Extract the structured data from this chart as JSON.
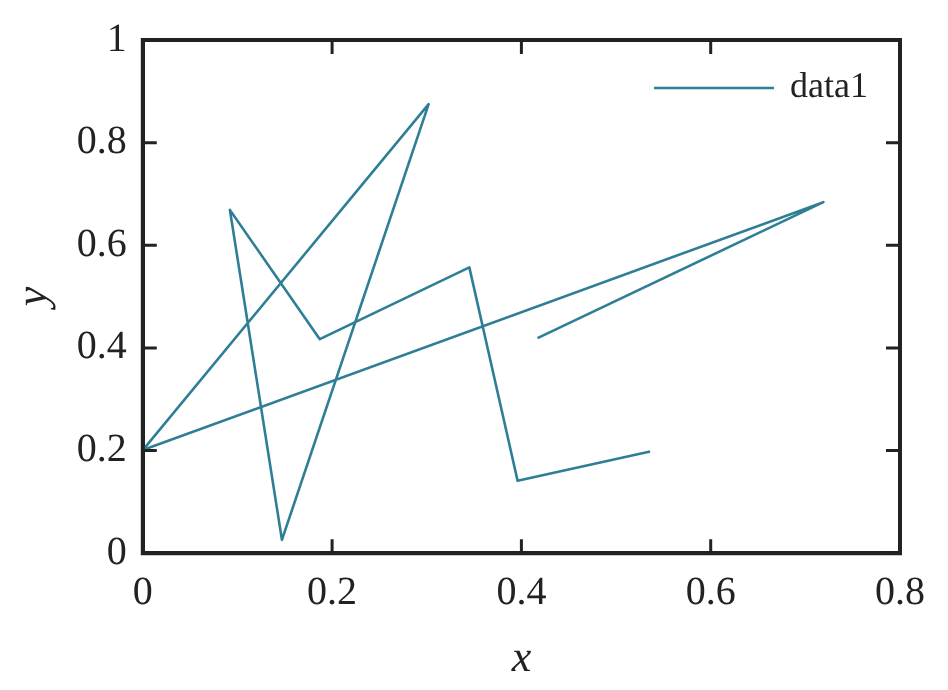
{
  "chart_data": {
    "type": "line",
    "xlabel": "x",
    "ylabel": "y",
    "xlim": [
      0,
      0.8
    ],
    "xticks": [
      0,
      0.2,
      0.4,
      0.6,
      0.8
    ],
    "ylim": [
      0,
      1
    ],
    "yticks": [
      0,
      0.2,
      0.4,
      0.6,
      0.8,
      1
    ],
    "grid": false,
    "legend": "top right",
    "marker": "none",
    "line_style": "solid",
    "series": [
      {
        "name": "data1",
        "color": "#2e7f96",
        "x": [
          0.417,
          0.719,
          0,
          0.302,
          0.147,
          0.092,
          0.187,
          0.345,
          0.396,
          0.536
        ],
        "values": [
          0.419,
          0.684,
          0.201,
          0.875,
          0.026,
          0.669,
          0.417,
          0.557,
          0.141,
          0.198
        ]
      }
    ]
  }
}
